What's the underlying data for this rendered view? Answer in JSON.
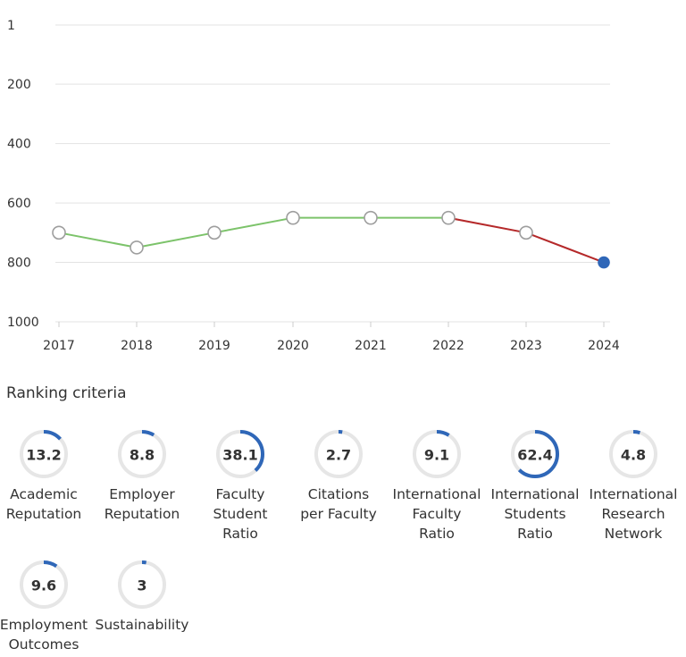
{
  "chart_data": {
    "type": "line",
    "x": [
      "2017",
      "2018",
      "2019",
      "2020",
      "2021",
      "2022",
      "2023",
      "2024"
    ],
    "y": [
      700,
      750,
      700,
      650,
      650,
      650,
      700,
      800
    ],
    "ylim": [
      1,
      1000
    ],
    "y_inverted": true,
    "y_ticks": [
      "1",
      "200",
      "400",
      "600",
      "800",
      "1000"
    ],
    "grid": true,
    "segment_colors": {
      "rise_or_flat": "#7cc36a",
      "decline": "#b5292a"
    },
    "highlight_last_point_color": "#2f67b8"
  },
  "criteria_title": "Ranking criteria",
  "criteria": [
    {
      "value": "13.2",
      "label_lines": [
        "Academic",
        "Reputation"
      ],
      "fraction": 0.132
    },
    {
      "value": "8.8",
      "label_lines": [
        "Employer",
        "Reputation"
      ],
      "fraction": 0.088
    },
    {
      "value": "38.1",
      "label_lines": [
        "Faculty",
        "Student",
        "Ratio"
      ],
      "fraction": 0.381
    },
    {
      "value": "2.7",
      "label_lines": [
        "Citations",
        "per Faculty"
      ],
      "fraction": 0.027
    },
    {
      "value": "9.1",
      "label_lines": [
        "International",
        "Faculty",
        "Ratio"
      ],
      "fraction": 0.091
    },
    {
      "value": "62.4",
      "label_lines": [
        "International",
        "Students",
        "Ratio"
      ],
      "fraction": 0.624
    },
    {
      "value": "4.8",
      "label_lines": [
        "International",
        "Research",
        "Network"
      ],
      "fraction": 0.048
    },
    {
      "value": "9.6",
      "label_lines": [
        "Employment",
        "Outcomes"
      ],
      "fraction": 0.096
    },
    {
      "value": "3",
      "label_lines": [
        "Sustainability"
      ],
      "fraction": 0.03
    }
  ],
  "ring_colors": {
    "track": "#e6e6e6",
    "fill": "#2f67b8"
  }
}
